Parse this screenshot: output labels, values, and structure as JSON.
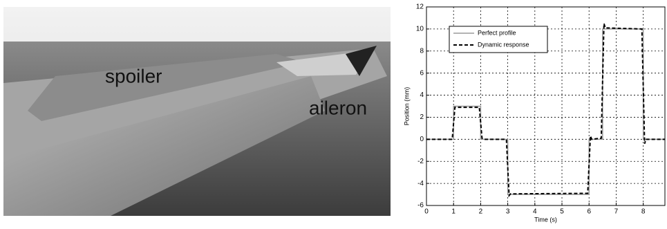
{
  "photo": {
    "labels": [
      "spoiler",
      "aileron"
    ]
  },
  "chart_data": {
    "type": "line",
    "xlabel": "Time (s)",
    "ylabel": "Position (mm)",
    "xlim": [
      0,
      8.8
    ],
    "ylim": [
      -6,
      12
    ],
    "xticks": [
      0,
      1,
      2,
      3,
      4,
      5,
      6,
      7,
      8
    ],
    "yticks": [
      -6,
      -4,
      -2,
      0,
      2,
      4,
      6,
      8,
      10,
      12
    ],
    "grid": true,
    "legend": "upper left",
    "series": [
      {
        "name": "Perfect profile",
        "color": "#9a9a9a",
        "style": "solid",
        "x": [
          0,
          1,
          1,
          2,
          2,
          3,
          3,
          6,
          6,
          6.5,
          6.5,
          8,
          8,
          8.8
        ],
        "values": [
          0,
          0,
          3,
          3,
          0,
          0,
          -5,
          -5,
          0,
          0,
          10,
          10,
          0,
          0
        ]
      },
      {
        "name": "Dynamic response",
        "color": "#000000",
        "style": "dashed",
        "x": [
          0,
          0.95,
          1.05,
          1.1,
          1.95,
          2.05,
          2.1,
          2.95,
          3.05,
          3.1,
          5.95,
          6.05,
          6.1,
          6.45,
          6.55,
          6.6,
          7.95,
          8.05,
          8.1,
          8.8
        ],
        "values": [
          0,
          0,
          2.9,
          2.9,
          2.9,
          0.1,
          0,
          0,
          -5.1,
          -4.95,
          -4.9,
          0.3,
          0,
          0.1,
          10.5,
          10.1,
          10,
          -0.4,
          0,
          0
        ]
      }
    ]
  }
}
